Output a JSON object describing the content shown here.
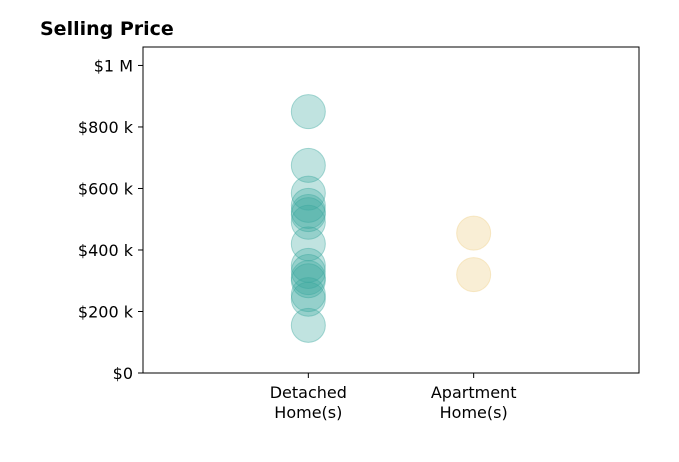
{
  "chart_data": {
    "type": "scatter",
    "title": "Selling Price",
    "xlabel": "",
    "ylabel": "",
    "categories": [
      "Detached\nHome(s)",
      "Apartment\nHome(s)"
    ],
    "y_ticks": [
      {
        "value": 0,
        "label": "$0"
      },
      {
        "value": 200000,
        "label": "$200 k"
      },
      {
        "value": 400000,
        "label": "$400 k"
      },
      {
        "value": 600000,
        "label": "$600 k"
      },
      {
        "value": 800000,
        "label": "$800 k"
      },
      {
        "value": 1000000,
        "label": "$1 M"
      }
    ],
    "ylim": [
      0,
      1060000
    ],
    "xlim": [
      -1,
      2
    ],
    "grid": false,
    "series": [
      {
        "category_index": 0,
        "color": "#3aa79e",
        "opacity": 0.32,
        "values": [
          850000,
          675000,
          585000,
          545000,
          525000,
          515000,
          490000,
          420000,
          350000,
          330000,
          310000,
          300000,
          255000,
          240000,
          155000
        ]
      },
      {
        "category_index": 1,
        "color": "#f1d596",
        "opacity": 0.4,
        "values": [
          455000,
          320000
        ]
      }
    ]
  }
}
